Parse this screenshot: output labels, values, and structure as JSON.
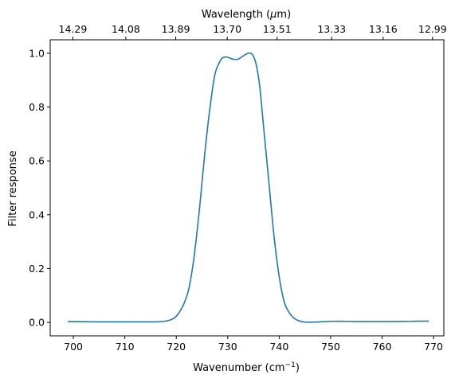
{
  "chart_data": {
    "type": "line",
    "title": "",
    "xlabel": "Wavenumber (cm",
    "xlabel_sup": "−1",
    "xlabel_close": ")",
    "ylabel": "Filter response",
    "top_xlabel": "Wavelength (",
    "top_xlabel_mu": "μ",
    "top_xlabel_tail": "m)",
    "xlim": [
      695.5,
      772
    ],
    "ylim": [
      -0.05,
      1.05
    ],
    "xticks": [
      700,
      710,
      720,
      730,
      740,
      750,
      760,
      770
    ],
    "yticks": [
      0.0,
      0.2,
      0.4,
      0.6,
      0.8,
      1.0
    ],
    "ytick_labels": [
      "0.0",
      "0.2",
      "0.4",
      "0.6",
      "0.8",
      "1.0"
    ],
    "top_ticks": [
      {
        "wavenumber": 699.9,
        "label": "14.29"
      },
      {
        "wavenumber": 710.2,
        "label": "14.08"
      },
      {
        "wavenumber": 719.9,
        "label": "13.89"
      },
      {
        "wavenumber": 729.9,
        "label": "13.70"
      },
      {
        "wavenumber": 739.6,
        "label": "13.51"
      },
      {
        "wavenumber": 750.2,
        "label": "13.33"
      },
      {
        "wavenumber": 760.2,
        "label": "13.16"
      },
      {
        "wavenumber": 769.8,
        "label": "12.99"
      }
    ],
    "line_color": "#1f77b4",
    "grid": false,
    "series": [
      {
        "x": [
          699,
          705,
          712,
          716,
          718,
          719.5,
          720.5,
          721.5,
          722.5,
          723.5,
          724.5,
          725.5,
          726.5,
          727.5,
          728.5,
          729.2,
          730,
          731,
          732,
          733,
          734,
          734.8,
          735.5,
          736.2,
          737,
          738,
          739,
          740,
          741,
          742,
          743,
          744,
          745,
          747,
          750,
          753,
          756,
          760,
          765,
          769
        ],
        "y": [
          0.003,
          0.002,
          0.002,
          0.002,
          0.005,
          0.015,
          0.035,
          0.07,
          0.13,
          0.25,
          0.42,
          0.62,
          0.79,
          0.92,
          0.97,
          0.985,
          0.985,
          0.978,
          0.978,
          0.99,
          1.0,
          0.995,
          0.96,
          0.88,
          0.72,
          0.52,
          0.32,
          0.17,
          0.075,
          0.035,
          0.014,
          0.005,
          0.001,
          0.001,
          0.004,
          0.004,
          0.003,
          0.003,
          0.004,
          0.005
        ]
      }
    ]
  }
}
